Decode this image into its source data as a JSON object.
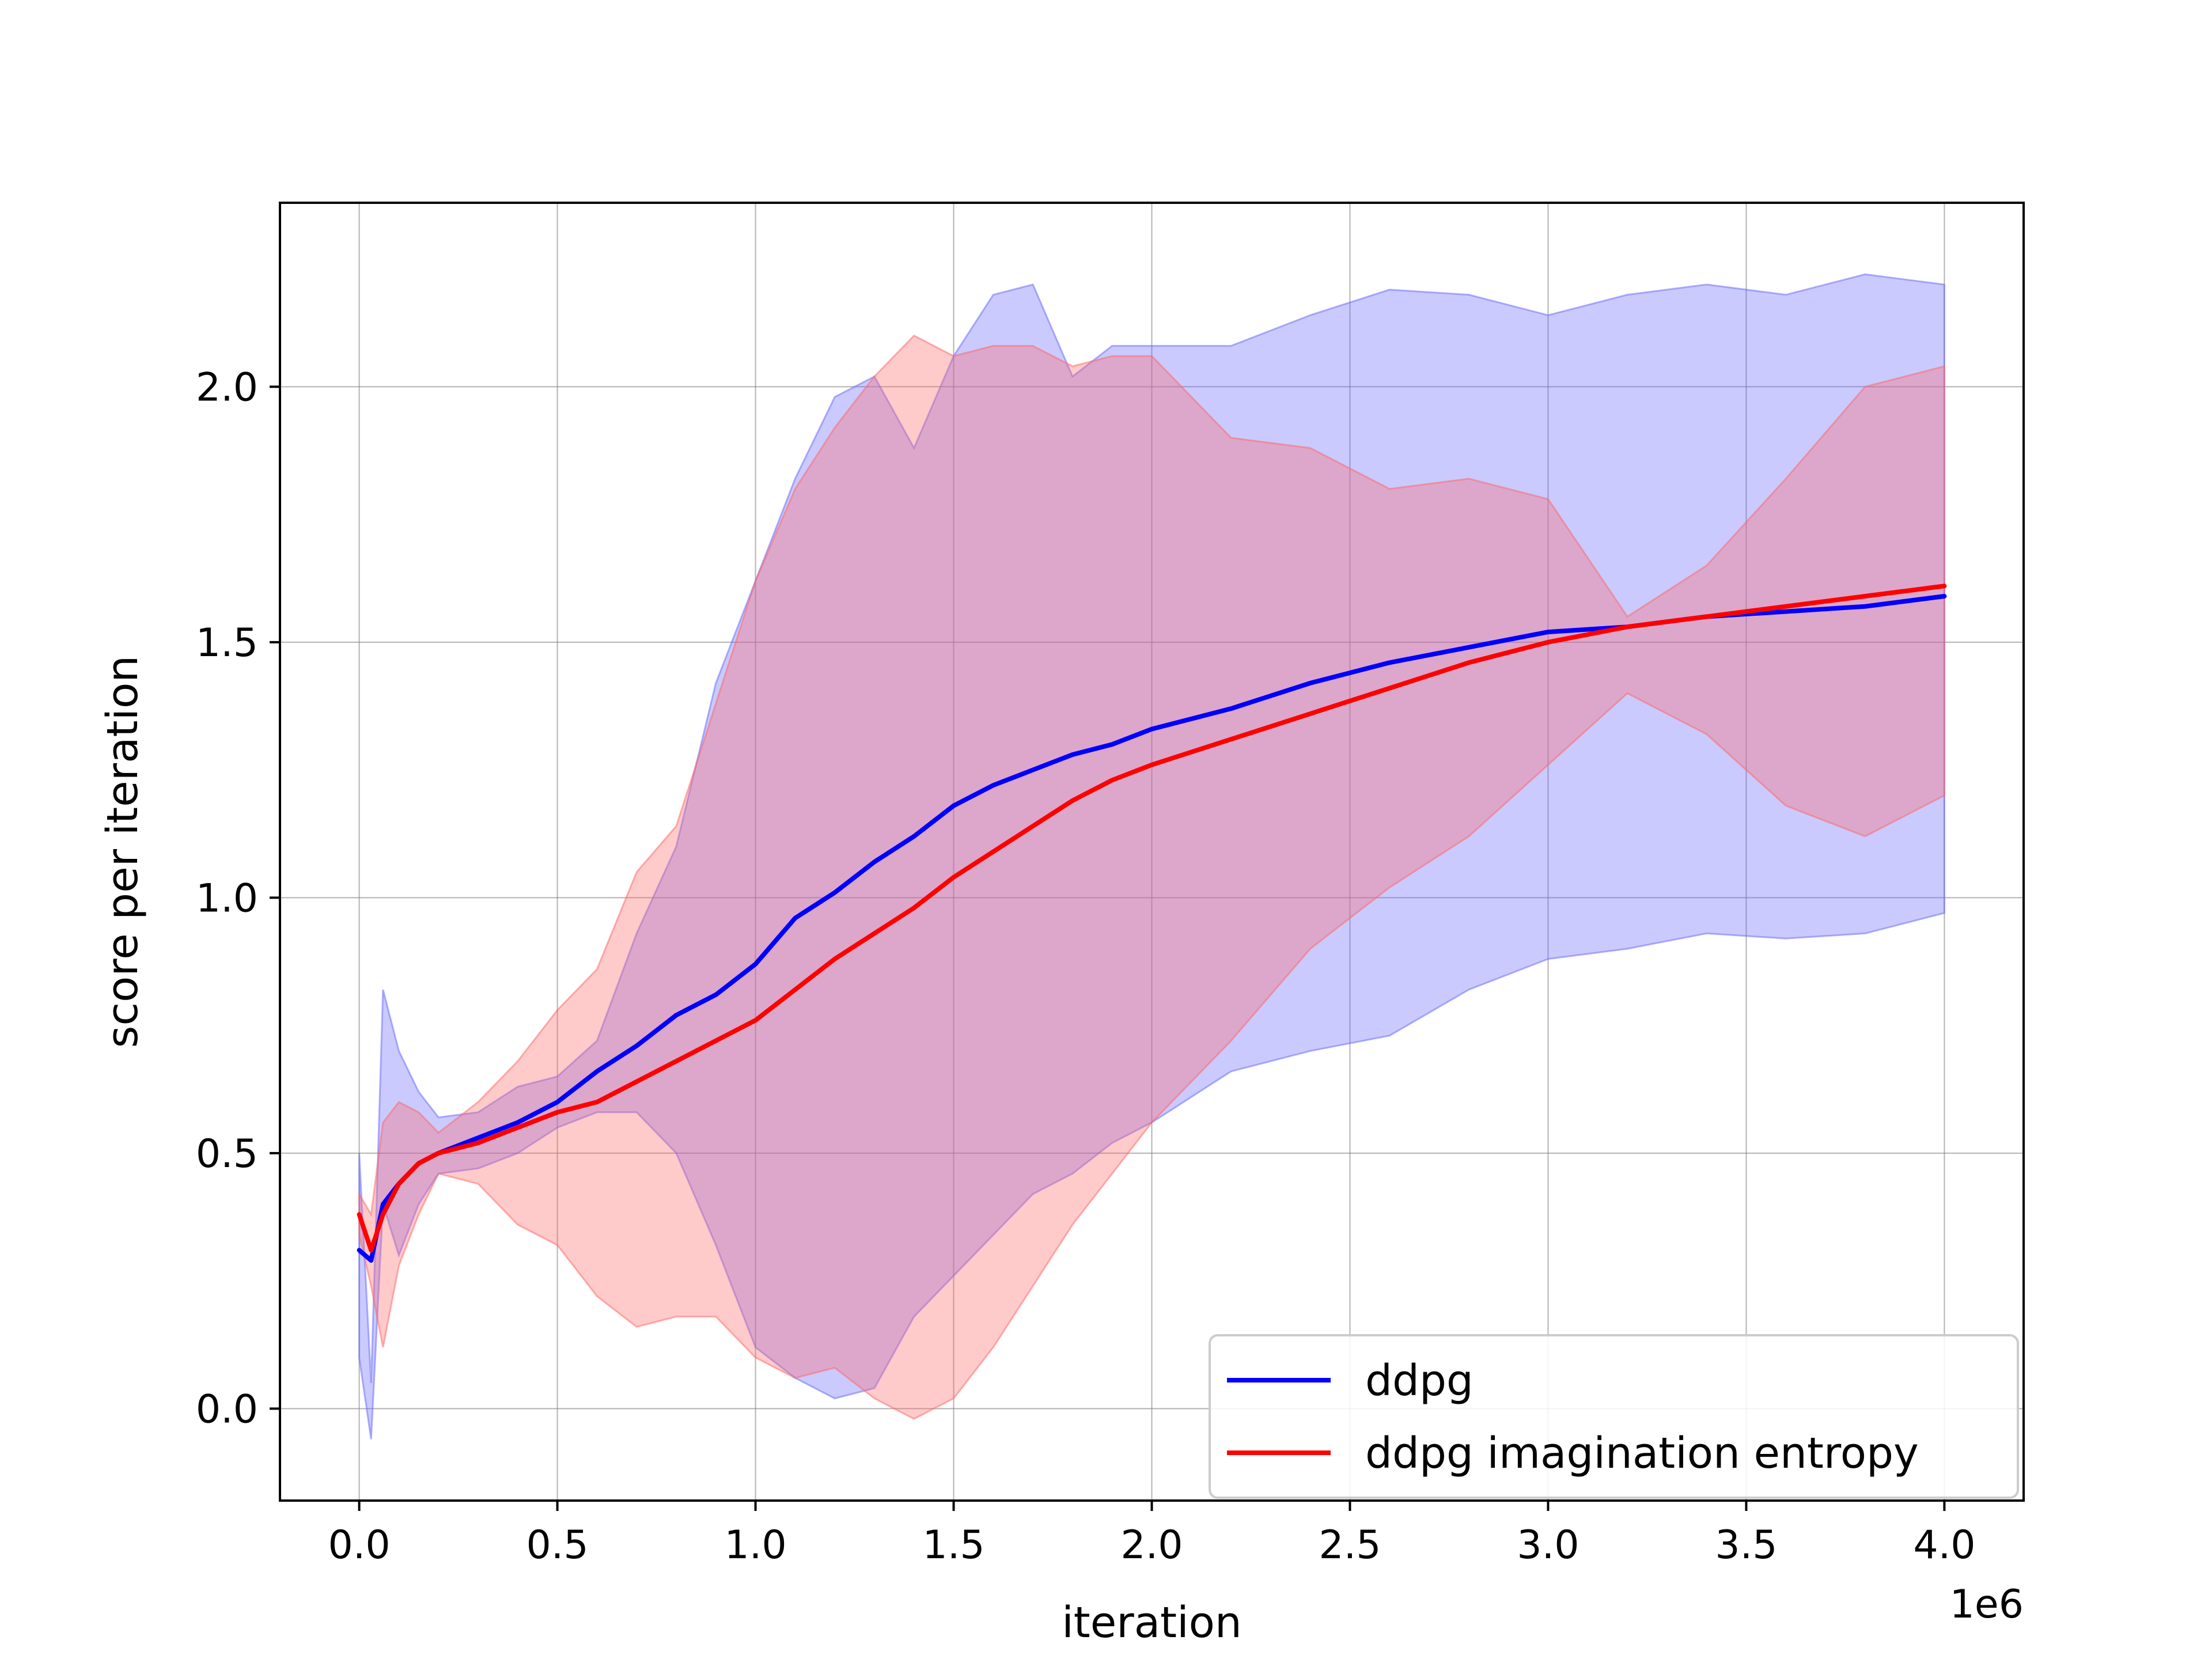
{
  "chart_data": {
    "type": "line",
    "title": "",
    "xlabel": "iteration",
    "ylabel": "score per iteration",
    "x_offset_label": "1e6",
    "xlim": [
      -0.2,
      4.2
    ],
    "ylim": [
      -0.18,
      2.36
    ],
    "x_scale": 1000000,
    "xticks": [
      0.0,
      0.5,
      1.0,
      1.5,
      2.0,
      2.5,
      3.0,
      3.5,
      4.0
    ],
    "xtick_labels": [
      "0.0",
      "0.5",
      "1.0",
      "1.5",
      "2.0",
      "2.5",
      "3.0",
      "3.5",
      "4.0"
    ],
    "yticks": [
      0.0,
      0.5,
      1.0,
      1.5,
      2.0
    ],
    "ytick_labels": [
      "0.0",
      "0.5",
      "1.0",
      "1.5",
      "2.0"
    ],
    "grid": true,
    "legend_position": "lower-right",
    "series": [
      {
        "name": "ddpg",
        "color": "#0000ff",
        "fill_color": "#6666ff",
        "x": [
          0.0,
          0.03,
          0.06,
          0.1,
          0.15,
          0.2,
          0.3,
          0.4,
          0.5,
          0.6,
          0.7,
          0.8,
          0.9,
          1.0,
          1.1,
          1.2,
          1.3,
          1.4,
          1.5,
          1.6,
          1.7,
          1.8,
          1.9,
          2.0,
          2.2,
          2.4,
          2.6,
          2.8,
          3.0,
          3.2,
          3.4,
          3.6,
          3.8,
          4.0
        ],
        "mean": [
          0.31,
          0.29,
          0.4,
          0.44,
          0.48,
          0.5,
          0.53,
          0.56,
          0.6,
          0.66,
          0.71,
          0.77,
          0.81,
          0.87,
          0.96,
          1.01,
          1.07,
          1.12,
          1.18,
          1.22,
          1.25,
          1.28,
          1.3,
          1.33,
          1.37,
          1.42,
          1.46,
          1.49,
          1.52,
          1.53,
          1.55,
          1.56,
          1.57,
          1.59
        ],
        "upper": [
          0.5,
          0.05,
          0.82,
          0.7,
          0.62,
          0.57,
          0.58,
          0.63,
          0.65,
          0.72,
          0.93,
          1.1,
          1.42,
          1.62,
          1.82,
          1.98,
          2.02,
          1.88,
          2.06,
          2.18,
          2.2,
          2.02,
          2.08,
          2.08,
          2.08,
          2.14,
          2.19,
          2.18,
          2.14,
          2.18,
          2.2,
          2.18,
          2.22,
          2.2
        ],
        "lower": [
          0.1,
          -0.06,
          0.4,
          0.3,
          0.4,
          0.46,
          0.47,
          0.5,
          0.55,
          0.58,
          0.58,
          0.5,
          0.32,
          0.12,
          0.06,
          0.02,
          0.04,
          0.18,
          0.26,
          0.34,
          0.42,
          0.46,
          0.52,
          0.56,
          0.66,
          0.7,
          0.73,
          0.82,
          0.88,
          0.9,
          0.93,
          0.92,
          0.93,
          0.97
        ]
      },
      {
        "name": "ddpg imagination entropy",
        "color": "#ff0000",
        "fill_color": "#ff6666",
        "x": [
          0.0,
          0.03,
          0.06,
          0.1,
          0.15,
          0.2,
          0.3,
          0.4,
          0.5,
          0.6,
          0.7,
          0.8,
          0.9,
          1.0,
          1.1,
          1.2,
          1.3,
          1.4,
          1.5,
          1.6,
          1.7,
          1.8,
          1.9,
          2.0,
          2.2,
          2.4,
          2.6,
          2.8,
          3.0,
          3.2,
          3.4,
          3.6,
          3.8,
          4.0
        ],
        "mean": [
          0.38,
          0.31,
          0.38,
          0.44,
          0.48,
          0.5,
          0.52,
          0.55,
          0.58,
          0.6,
          0.64,
          0.68,
          0.72,
          0.76,
          0.82,
          0.88,
          0.93,
          0.98,
          1.04,
          1.09,
          1.14,
          1.19,
          1.23,
          1.26,
          1.31,
          1.36,
          1.41,
          1.46,
          1.5,
          1.53,
          1.55,
          1.57,
          1.59,
          1.61
        ],
        "upper": [
          0.42,
          0.38,
          0.56,
          0.6,
          0.58,
          0.54,
          0.6,
          0.68,
          0.78,
          0.86,
          1.05,
          1.14,
          1.38,
          1.62,
          1.8,
          1.92,
          2.02,
          2.1,
          2.06,
          2.08,
          2.08,
          2.04,
          2.06,
          2.06,
          1.9,
          1.88,
          1.8,
          1.82,
          1.78,
          1.55,
          1.65,
          1.82,
          2.0,
          2.04
        ],
        "lower": [
          0.34,
          0.24,
          0.12,
          0.28,
          0.38,
          0.46,
          0.44,
          0.36,
          0.32,
          0.22,
          0.16,
          0.18,
          0.18,
          0.1,
          0.06,
          0.08,
          0.02,
          -0.02,
          0.02,
          0.12,
          0.24,
          0.36,
          0.46,
          0.56,
          0.72,
          0.9,
          1.02,
          1.12,
          1.26,
          1.4,
          1.32,
          1.18,
          1.12,
          1.2
        ]
      }
    ]
  }
}
